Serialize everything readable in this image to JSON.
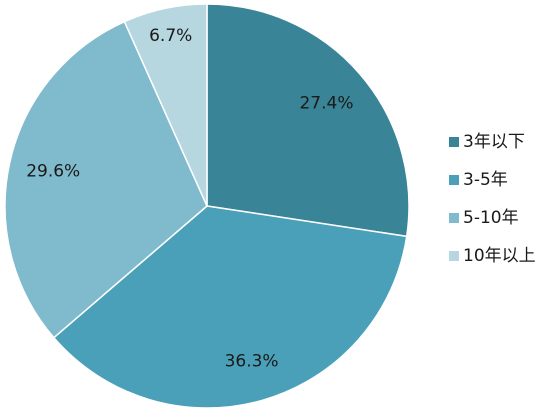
{
  "chart_data": {
    "type": "pie",
    "title": "",
    "categories": [
      "3年以下",
      "3-5年",
      "5-10年",
      "10年以上"
    ],
    "values": [
      27.4,
      36.3,
      29.6,
      6.7
    ],
    "labels": [
      "27.4%",
      "36.3%",
      "29.6%",
      "6.7%"
    ],
    "colors": [
      "#3a8497",
      "#4aa0b8",
      "#7fbacd",
      "#b6d6e0"
    ],
    "legend_position": "right",
    "start_angle_deg": 0,
    "direction": "clockwise"
  }
}
